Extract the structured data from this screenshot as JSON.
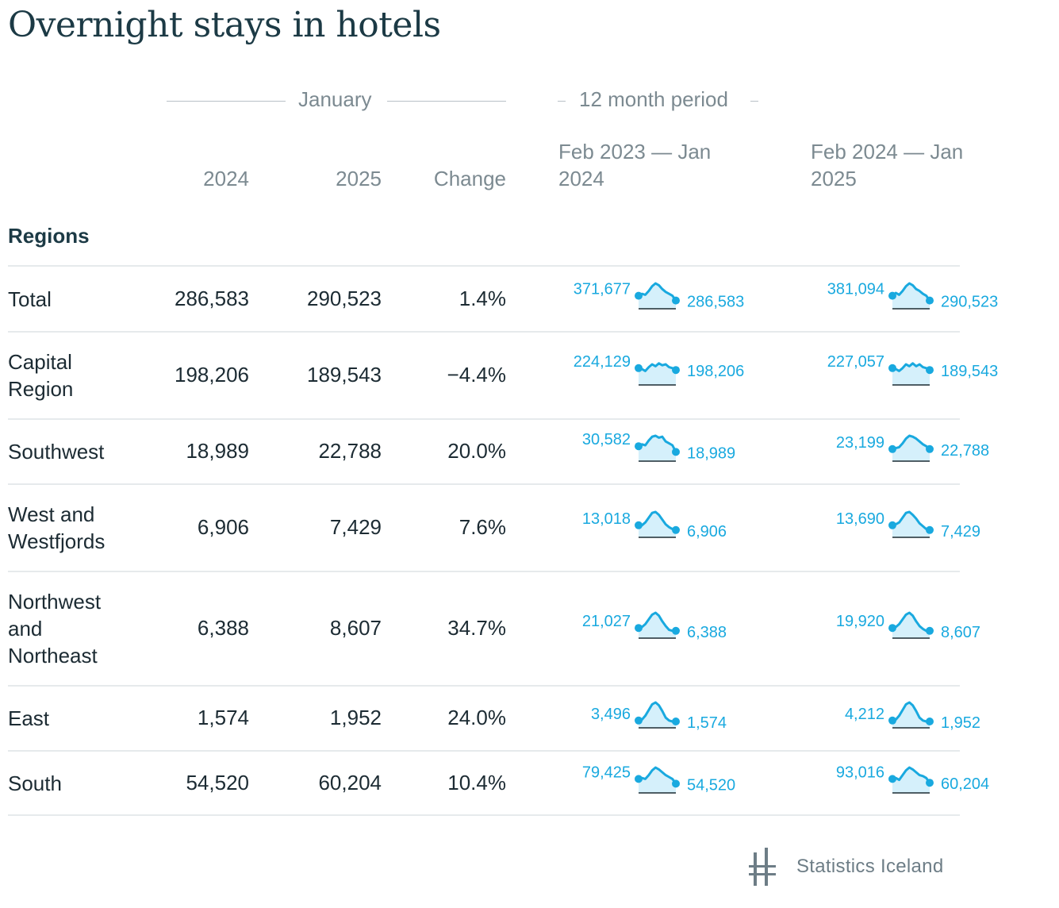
{
  "title": "Overnight stays in hotels",
  "headers": {
    "group_january": "January",
    "group_period": "12 month period",
    "col_2024": "2024",
    "col_2025": "2025",
    "col_change": "Change",
    "period1_line1": "Feb 2023 — Jan",
    "period1_line2": "2024",
    "period2_line1": "Feb 2024 — Jan",
    "period2_line2": "2025"
  },
  "section_label": "Regions",
  "branding": "Statistics Iceland",
  "colors": {
    "spark": "#19a9df",
    "spark_fill": "#d5f0fb",
    "text": "#1c2b33",
    "muted": "#7c8a91"
  },
  "chart_data": {
    "type": "table",
    "columns": [
      "2024",
      "2025",
      "Change",
      "Feb 2023 — Jan 2024",
      "Feb 2024 — Jan 2025"
    ],
    "rows": [
      {
        "region": "Total",
        "v2024": "286,583",
        "v2025": "290,523",
        "change": "1.4%",
        "p1_start": "371,677",
        "p1_end": "286,583",
        "p2_start": "381,094",
        "p2_end": "290,523",
        "p1_shape": [
          0.35,
          0.45,
          0.4,
          0.6,
          0.85,
          1.0,
          0.9,
          0.7,
          0.55,
          0.45,
          0.35,
          0.1
        ],
        "p2_shape": [
          0.35,
          0.5,
          0.4,
          0.6,
          0.85,
          1.0,
          0.9,
          0.7,
          0.6,
          0.45,
          0.35,
          0.1
        ]
      },
      {
        "region": "Capital Region",
        "v2024": "198,206",
        "v2025": "189,543",
        "change": "−4.4%",
        "p1_start": "224,129",
        "p1_end": "198,206",
        "p2_start": "227,057",
        "p2_end": "189,543",
        "p1_shape": [
          0.55,
          0.5,
          0.4,
          0.6,
          0.75,
          0.65,
          0.8,
          0.7,
          0.75,
          0.6,
          0.55,
          0.45
        ],
        "p2_shape": [
          0.55,
          0.5,
          0.4,
          0.55,
          0.75,
          0.65,
          0.8,
          0.65,
          0.75,
          0.6,
          0.55,
          0.45
        ]
      },
      {
        "region": "Southwest",
        "v2024": "18,989",
        "v2025": "22,788",
        "change": "20.0%",
        "p1_start": "30,582",
        "p1_end": "18,989",
        "p2_start": "23,199",
        "p2_end": "22,788",
        "p1_shape": [
          0.45,
          0.55,
          0.5,
          0.75,
          0.95,
          1.0,
          0.9,
          0.95,
          0.7,
          0.6,
          0.5,
          0.15
        ],
        "p2_shape": [
          0.3,
          0.35,
          0.4,
          0.6,
          0.85,
          1.0,
          0.95,
          0.85,
          0.7,
          0.55,
          0.45,
          0.3
        ]
      },
      {
        "region": "West and Westfjords",
        "v2024": "6,906",
        "v2025": "7,429",
        "change": "7.6%",
        "p1_start": "13,018",
        "p1_end": "6,906",
        "p2_start": "13,690",
        "p2_end": "7,429",
        "p1_shape": [
          0.3,
          0.3,
          0.45,
          0.7,
          0.95,
          1.0,
          0.85,
          0.6,
          0.35,
          0.2,
          0.1,
          0.05
        ],
        "p2_shape": [
          0.3,
          0.35,
          0.45,
          0.7,
          0.95,
          1.0,
          0.85,
          0.65,
          0.4,
          0.25,
          0.1,
          0.05
        ]
      },
      {
        "region": "Northwest and Northeast",
        "v2024": "6,388",
        "v2025": "8,607",
        "change": "34.7%",
        "p1_start": "21,027",
        "p1_end": "6,388",
        "p2_start": "19,920",
        "p2_end": "8,607",
        "p1_shape": [
          0.2,
          0.25,
          0.4,
          0.65,
          0.9,
          1.0,
          0.85,
          0.55,
          0.3,
          0.1,
          0.05,
          0.05
        ],
        "p2_shape": [
          0.2,
          0.25,
          0.4,
          0.65,
          0.9,
          1.0,
          0.85,
          0.55,
          0.3,
          0.15,
          0.05,
          0.05
        ]
      },
      {
        "region": "East",
        "v2024": "1,574",
        "v2025": "1,952",
        "change": "24.0%",
        "p1_start": "3,496",
        "p1_end": "1,574",
        "p2_start": "4,212",
        "p2_end": "1,952",
        "p1_shape": [
          0.05,
          0.1,
          0.3,
          0.6,
          0.9,
          1.0,
          0.85,
          0.55,
          0.2,
          0.05,
          0.0,
          0.0
        ],
        "p2_shape": [
          0.05,
          0.1,
          0.3,
          0.6,
          0.9,
          1.0,
          0.85,
          0.55,
          0.2,
          0.05,
          0.0,
          0.0
        ]
      },
      {
        "region": "South",
        "v2024": "54,520",
        "v2025": "60,204",
        "change": "10.4%",
        "p1_start": "79,425",
        "p1_end": "54,520",
        "p2_start": "93,016",
        "p2_end": "60,204",
        "p1_shape": [
          0.4,
          0.45,
          0.4,
          0.6,
          0.85,
          1.0,
          0.9,
          0.75,
          0.6,
          0.5,
          0.4,
          0.15
        ],
        "p2_shape": [
          0.4,
          0.45,
          0.35,
          0.6,
          0.85,
          1.0,
          0.9,
          0.75,
          0.6,
          0.55,
          0.45,
          0.2
        ]
      }
    ]
  }
}
